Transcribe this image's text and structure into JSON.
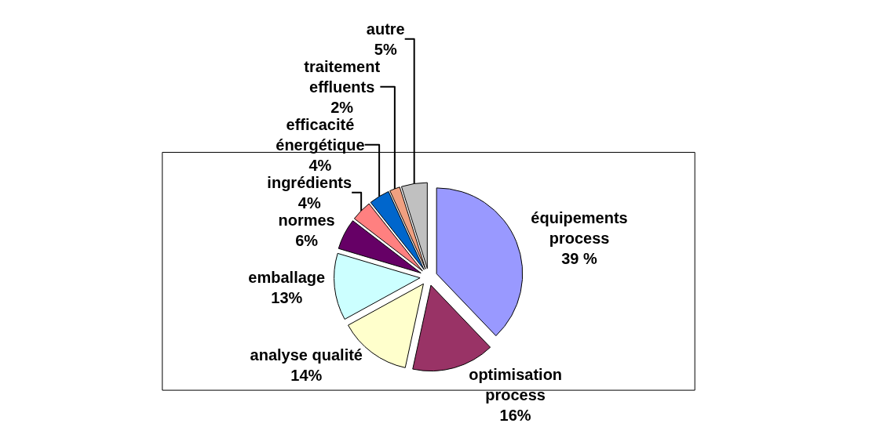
{
  "chart_data": {
    "type": "pie",
    "categories": [
      "équipements process",
      "optimisation process",
      "analyse qualité",
      "emballage",
      "normes",
      "ingrédients",
      "efficacité énergétique",
      "traitement effluents",
      "autre"
    ],
    "values": [
      39,
      16,
      14,
      13,
      6,
      4,
      4,
      2,
      5
    ],
    "value_labels": [
      "39 %",
      "16%",
      "14%",
      "13%",
      "6%",
      "4%",
      "4%",
      "2%",
      "5%"
    ],
    "colors": [
      "#9999ff",
      "#993366",
      "#ffffcc",
      "#ccffff",
      "#660066",
      "#ff8080",
      "#0066cc",
      "#f0a080",
      "#c0c0c0"
    ],
    "legend": false
  }
}
